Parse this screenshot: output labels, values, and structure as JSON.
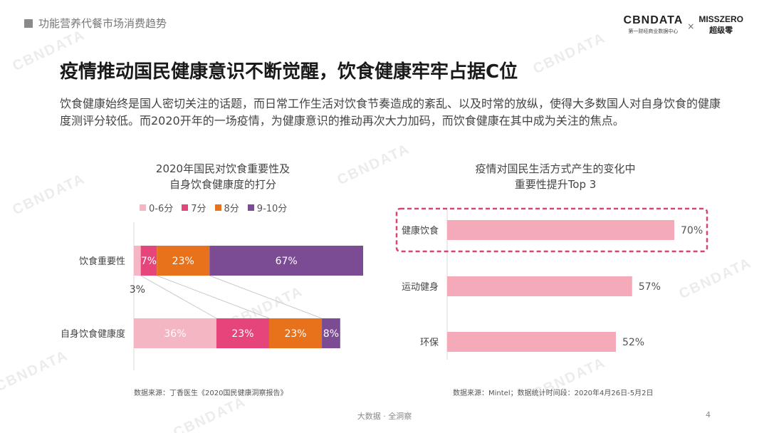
{
  "section_tag": "功能营养代餐市场消费趋势",
  "brand": {
    "cbn_name": "CBNDATA",
    "cbn_sub": "第一财经商业数据中心",
    "times": "×",
    "miss_name": "MISSZERO",
    "miss_sub": "超级零"
  },
  "headline": "疫情推动国民健康意识不断觉醒，饮食健康牢牢占据C位",
  "intro": "饮食健康始终是国人密切关注的话题，而日常工作生活对饮食节奏造成的紊乱、以及时常的放纵，使得大多数国人对自身饮食的健康度测评分较低。而2020开年的一场疫情，为健康意识的推动再次大力加码，而饮食健康在其中成为关注的焦点。",
  "watermark_text": "CBNDATA",
  "left_chart_title": [
    "2020年国民对饮食重要性及",
    "自身饮食健康度的打分"
  ],
  "right_chart_title": [
    "疫情对国民生活方式产生的变化中",
    "重要性提升Top 3"
  ],
  "left_source": "数据来源：丁香医生《2020国民健康洞察报告》",
  "right_source": "数据来源：Mintel；数据统计时间段：2020年4月26日-5月2日",
  "footer": "大数据 · 全洞察",
  "page_number": "4",
  "chart_data": [
    {
      "type": "bar",
      "orientation": "horizontal",
      "stacked": true,
      "percent_stacked": true,
      "categories": [
        "饮食重要性",
        "自身饮食健康度"
      ],
      "series": [
        {
          "name": "0-6分",
          "color": "#f4b6c2",
          "values": [
            3,
            36
          ],
          "labels": [
            "3%",
            "36%"
          ]
        },
        {
          "name": "7分",
          "color": "#e5457a",
          "values": [
            7,
            23
          ],
          "labels": [
            "7%",
            "23%"
          ]
        },
        {
          "name": "8分",
          "color": "#e8711c",
          "values": [
            23,
            23
          ],
          "labels": [
            "23%",
            "23%"
          ]
        },
        {
          "name": "9-10分",
          "color": "#7b4b94",
          "values": [
            67,
            8
          ],
          "labels": [
            "67%",
            "8%"
          ]
        }
      ],
      "legend_position": "top"
    },
    {
      "type": "bar",
      "orientation": "horizontal",
      "categories": [
        "健康饮食",
        "运动健身",
        "环保"
      ],
      "values": [
        70,
        57,
        52
      ],
      "labels": [
        "70%",
        "57%",
        "52%"
      ],
      "bar_color": "#f4aab8",
      "highlight_category": "健康饮食",
      "highlight_color": "#d6457a"
    }
  ]
}
